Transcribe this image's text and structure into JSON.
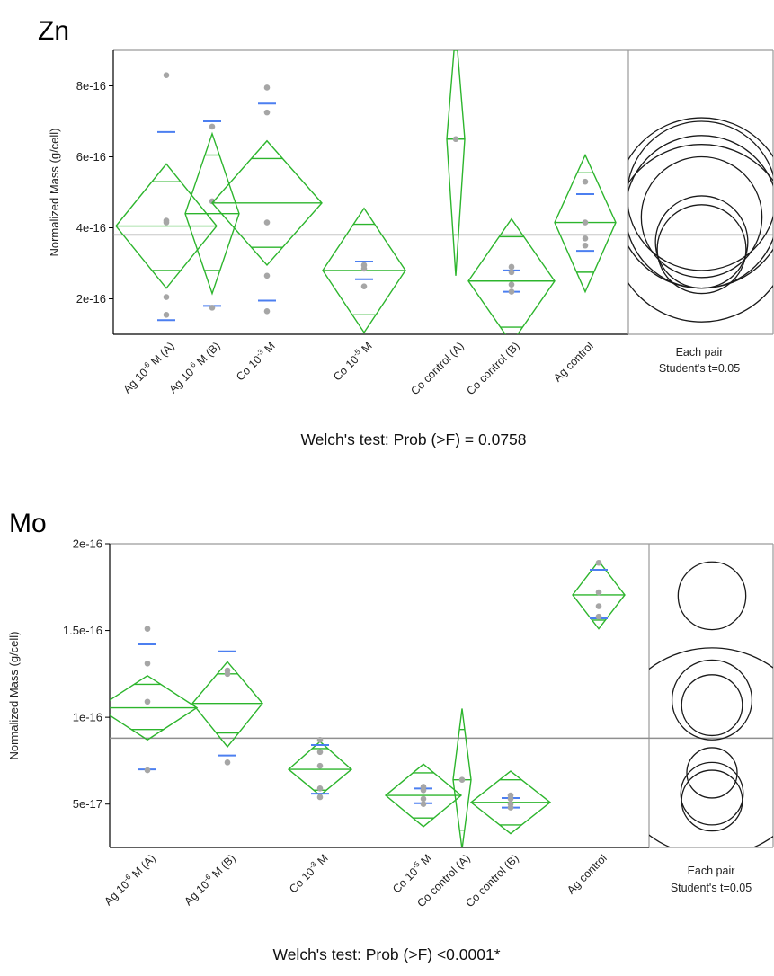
{
  "chart_data": [
    {
      "type": "means_diamonds",
      "title": "Zn",
      "ylabel": "Normalized Mass (g/cell)",
      "ylim": [
        1e-16,
        9e-16
      ],
      "yticks": [
        {
          "value": 2e-16,
          "label": "2e-16"
        },
        {
          "value": 4e-16,
          "label": "4e-16"
        },
        {
          "value": 6e-16,
          "label": "6e-16"
        },
        {
          "value": 8e-16,
          "label": "8e-16"
        }
      ],
      "categories": [
        {
          "pre": "Ag 10",
          "sup": "-6",
          "post": " M (A)"
        },
        {
          "pre": "Ag 10",
          "sup": "-6",
          "post": " M (B)"
        },
        {
          "pre": "Co 10",
          "sup": "-3",
          "post": " M"
        },
        {
          "pre": "Co 10",
          "sup": "-5",
          "post": " M"
        },
        {
          "pre": "Co control (A)",
          "sup": "",
          "post": ""
        },
        {
          "pre": "Co control (B)",
          "sup": "",
          "post": ""
        },
        {
          "pre": "Ag control",
          "sup": "",
          "post": ""
        }
      ],
      "grand_mean": 3.8e-16,
      "groups": [
        {
          "mean": 4.05e-16,
          "ci": [
            2.3e-16,
            5.8e-16
          ],
          "overlap": [
            2.8e-16,
            5.3e-16
          ],
          "sd_marks": [
            1.4e-16,
            6.7e-16
          ],
          "points": [
            8.3e-16,
            4.2e-16,
            4.15e-16,
            2.05e-16,
            1.55e-16
          ]
        },
        {
          "mean": 4.4e-16,
          "ci": [
            2.15e-16,
            6.65e-16
          ],
          "overlap": [
            2.8e-16,
            6.05e-16
          ],
          "sd_marks": [
            1.8e-16,
            7e-16
          ],
          "points": [
            6.85e-16,
            4.75e-16,
            1.75e-16
          ]
        },
        {
          "mean": 4.7e-16,
          "ci": [
            2.95e-16,
            6.45e-16
          ],
          "overlap": [
            3.45e-16,
            5.95e-16
          ],
          "sd_marks": [
            1.95e-16,
            7.5e-16
          ],
          "points": [
            7.95e-16,
            7.25e-16,
            4.15e-16,
            2.65e-16,
            1.65e-16
          ]
        },
        {
          "mean": 2.8e-16,
          "ci": [
            1.05e-16,
            4.55e-16
          ],
          "overlap": [
            1.55e-16,
            4.1e-16
          ],
          "sd_marks": [
            2.55e-16,
            3.05e-16
          ],
          "points": [
            2.95e-16,
            2.85e-16,
            2.35e-16
          ]
        },
        {
          "mean": 6.5e-16,
          "ci": [
            2.65e-16,
            9.6e-16
          ],
          "overlap": [
            3.8e-16,
            9e-16
          ],
          "sd_marks": [],
          "points": [
            6.5e-16
          ]
        },
        {
          "mean": 2.5e-16,
          "ci": [
            7.5e-17,
            4.25e-16
          ],
          "overlap": [
            1.2e-16,
            3.75e-16
          ],
          "sd_marks": [
            2.2e-16,
            2.8e-16
          ],
          "points": [
            2.9e-16,
            2.75e-16,
            2.4e-16,
            2.2e-16
          ]
        },
        {
          "mean": 4.15e-16,
          "ci": [
            2.2e-16,
            6.05e-16
          ],
          "overlap": [
            2.75e-16,
            5.55e-16
          ],
          "sd_marks": [
            3.35e-16,
            4.95e-16
          ],
          "points": [
            5.3e-16,
            4.15e-16,
            3.7e-16,
            3.5e-16
          ]
        }
      ],
      "circles": [
        {
          "center": 4.9e-16,
          "radius": 2.1e-16
        },
        {
          "center": 4.7e-16,
          "radius": 2.4e-16
        },
        {
          "center": 4.45e-16,
          "radius": 2.15e-16
        },
        {
          "center": 4.3e-16,
          "radius": 1.7e-16
        },
        {
          "center": 3.85e-16,
          "radius": 2.5e-16
        },
        {
          "center": 3.6e-16,
          "radius": 1.3e-16
        },
        {
          "center": 3.4e-16,
          "radius": 1.25e-16
        }
      ],
      "pair_label": [
        "Each pair",
        "Student's t=0.05"
      ],
      "footer": "Welch's test: Prob (>F) = 0.0758"
    },
    {
      "type": "means_diamonds",
      "title": "Mo",
      "ylabel": "Normalized Mass (g/cell)",
      "ylim": [
        2.5e-17,
        2e-16
      ],
      "yticks": [
        {
          "value": 5e-17,
          "label": "5e-17"
        },
        {
          "value": 1e-16,
          "label": "1e-16"
        },
        {
          "value": 1.5e-16,
          "label": "1.5e-16"
        },
        {
          "value": 2e-16,
          "label": "2e-16"
        }
      ],
      "categories": [
        {
          "pre": "Ag 10",
          "sup": "-6",
          "post": " M (A)"
        },
        {
          "pre": "Ag 10",
          "sup": "-6",
          "post": " M (B)"
        },
        {
          "pre": "Co 10",
          "sup": "-3",
          "post": " M"
        },
        {
          "pre": "Co 10",
          "sup": "-5",
          "post": " M"
        },
        {
          "pre": "Co control (A)",
          "sup": "",
          "post": ""
        },
        {
          "pre": "Co control (B)",
          "sup": "",
          "post": ""
        },
        {
          "pre": "Ag control",
          "sup": "",
          "post": ""
        }
      ],
      "grand_mean": 8.8e-17,
      "groups": [
        {
          "mean": 1.055e-16,
          "ci": [
            8.7e-17,
            1.24e-16
          ],
          "overlap": [
            9.3e-17,
            1.19e-16
          ],
          "sd_marks": [
            7e-17,
            1.42e-16
          ],
          "points": [
            1.51e-16,
            1.31e-16,
            1.09e-16,
            6.95e-17
          ]
        },
        {
          "mean": 1.08e-16,
          "ci": [
            8.3e-17,
            1.32e-16
          ],
          "overlap": [
            9.1e-17,
            1.25e-16
          ],
          "sd_marks": [
            7.8e-17,
            1.38e-16
          ],
          "points": [
            1.27e-16,
            1.25e-16,
            7.4e-17
          ]
        },
        {
          "mean": 7e-17,
          "ci": [
            5.5e-17,
            8.6e-17
          ],
          "overlap": [
            5.8e-17,
            8.2e-17
          ],
          "sd_marks": [
            5.6e-17,
            8.4e-17
          ],
          "points": [
            8.7e-17,
            8e-17,
            7.2e-17,
            5.9e-17,
            5.4e-17
          ]
        },
        {
          "mean": 5.5e-17,
          "ci": [
            3.7e-17,
            7.3e-17
          ],
          "overlap": [
            4.2e-17,
            6.8e-17
          ],
          "sd_marks": [
            5.05e-17,
            5.9e-17
          ],
          "points": [
            6e-17,
            5.8e-17,
            5.3e-17,
            5e-17
          ]
        },
        {
          "mean": 6.4e-17,
          "ci": [
            2.4e-17,
            1.05e-16
          ],
          "overlap": [
            3.5e-17,
            9.3e-17
          ],
          "sd_marks": [],
          "points": [
            6.4e-17
          ]
        },
        {
          "mean": 5.1e-17,
          "ci": [
            3.3e-17,
            6.9e-17
          ],
          "overlap": [
            3.8e-17,
            6.4e-17
          ],
          "sd_marks": [
            4.8e-17,
            5.35e-17
          ],
          "points": [
            5.5e-17,
            5.3e-17,
            5e-17,
            4.8e-17
          ]
        },
        {
          "mean": 1.705e-16,
          "ci": [
            1.51e-16,
            1.9e-16
          ],
          "overlap": [
            1.56e-16,
            1.85e-16
          ],
          "sd_marks": [
            1.57e-16,
            1.85e-16
          ],
          "points": [
            1.89e-16,
            1.72e-16,
            1.64e-16,
            1.58e-16
          ]
        }
      ],
      "circles": [
        {
          "center": 1.7e-16,
          "radius": 1.95e-17
        },
        {
          "center": 1.1e-16,
          "radius": 2.3e-17
        },
        {
          "center": 1.07e-16,
          "radius": 1.75e-17
        },
        {
          "center": 8e-17,
          "radius": 6e-17
        },
        {
          "center": 6.8e-17,
          "radius": 1.45e-17
        },
        {
          "center": 5.6e-17,
          "radius": 1.8e-17
        },
        {
          "center": 5.2e-17,
          "radius": 1.75e-17
        }
      ],
      "pair_label": [
        "Each pair",
        "Student's t=0.05"
      ],
      "footer": "Welch's test: Prob (>F) <0.0001*"
    }
  ],
  "colors": {
    "diamond": "#2db52d",
    "point": "#a6a6a6",
    "sd_mark": "#4c7ff0",
    "grand_mean": "#8f8f8f",
    "frame": "#9a9a9a",
    "circle": "#1a1a1a"
  }
}
